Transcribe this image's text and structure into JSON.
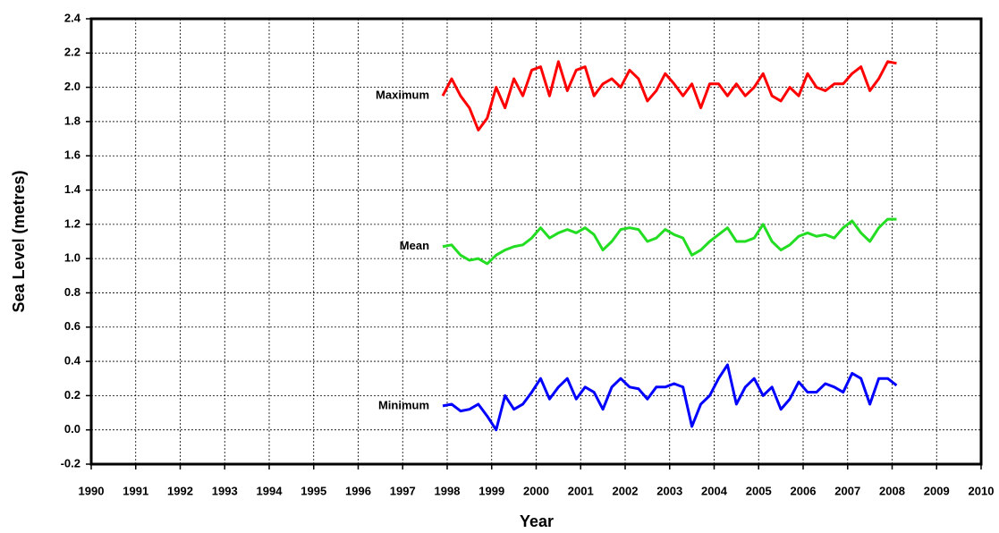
{
  "chart_data": {
    "type": "line",
    "xlabel": "Year",
    "ylabel": "Sea Level (metres)",
    "x": [
      1997.9,
      1998.1,
      1998.3,
      1998.5,
      1998.7,
      1998.9,
      1999.1,
      1999.3,
      1999.5,
      1999.7,
      1999.9,
      2000.1,
      2000.3,
      2000.5,
      2000.7,
      2000.9,
      2001.1,
      2001.3,
      2001.5,
      2001.7,
      2001.9,
      2002.1,
      2002.3,
      2002.5,
      2002.7,
      2002.9,
      2003.1,
      2003.3,
      2003.5,
      2003.7,
      2003.9,
      2004.1,
      2004.3,
      2004.5,
      2004.7,
      2004.9,
      2005.1,
      2005.3,
      2005.5,
      2005.7,
      2005.9,
      2006.1,
      2006.3,
      2006.5,
      2006.7,
      2006.9,
      2007.1,
      2007.3,
      2007.5,
      2007.7,
      2007.9,
      2008.1
    ],
    "series": [
      {
        "name": "Maximum",
        "color": "#ff0000",
        "values": [
          1.95,
          2.05,
          1.95,
          1.88,
          1.75,
          1.82,
          2.0,
          1.88,
          2.05,
          1.95,
          2.1,
          2.12,
          1.95,
          2.15,
          1.98,
          2.1,
          2.12,
          1.95,
          2.02,
          2.05,
          2.0,
          2.1,
          2.05,
          1.92,
          1.98,
          2.08,
          2.02,
          1.95,
          2.02,
          1.88,
          2.02,
          2.02,
          1.95,
          2.02,
          1.95,
          2.0,
          2.08,
          1.95,
          1.92,
          2.0,
          1.95,
          2.08,
          2.0,
          1.98,
          2.02,
          2.02,
          2.08,
          2.12,
          1.98,
          2.05,
          2.15,
          2.14
        ]
      },
      {
        "name": "Mean",
        "color": "#22dd22",
        "values": [
          1.07,
          1.08,
          1.02,
          0.99,
          1.0,
          0.97,
          1.02,
          1.05,
          1.07,
          1.08,
          1.12,
          1.18,
          1.12,
          1.15,
          1.17,
          1.15,
          1.18,
          1.14,
          1.05,
          1.1,
          1.17,
          1.18,
          1.17,
          1.1,
          1.12,
          1.17,
          1.14,
          1.12,
          1.02,
          1.05,
          1.1,
          1.14,
          1.18,
          1.1,
          1.1,
          1.12,
          1.2,
          1.1,
          1.05,
          1.08,
          1.13,
          1.15,
          1.13,
          1.14,
          1.12,
          1.18,
          1.22,
          1.15,
          1.1,
          1.18,
          1.23,
          1.23
        ]
      },
      {
        "name": "Minimum",
        "color": "#0000ff",
        "values": [
          0.14,
          0.15,
          0.11,
          0.12,
          0.15,
          0.08,
          0.0,
          0.2,
          0.12,
          0.15,
          0.22,
          0.3,
          0.18,
          0.25,
          0.3,
          0.18,
          0.25,
          0.22,
          0.12,
          0.25,
          0.3,
          0.25,
          0.24,
          0.18,
          0.25,
          0.25,
          0.27,
          0.25,
          0.02,
          0.15,
          0.2,
          0.3,
          0.38,
          0.15,
          0.25,
          0.3,
          0.2,
          0.25,
          0.12,
          0.18,
          0.28,
          0.22,
          0.22,
          0.27,
          0.25,
          0.22,
          0.33,
          0.3,
          0.15,
          0.3,
          0.3,
          0.26
        ]
      }
    ],
    "xlim": [
      1990,
      2010
    ],
    "xticks": [
      1990,
      1991,
      1992,
      1993,
      1994,
      1995,
      1996,
      1997,
      1998,
      1999,
      2000,
      2001,
      2002,
      2003,
      2004,
      2005,
      2006,
      2007,
      2008,
      2009,
      2010
    ],
    "ylim": [
      -0.2,
      2.4
    ],
    "yticks": [
      -0.2,
      {
        "value": 0,
        "label": "0.0"
      },
      0.2,
      0.4,
      0.6,
      0.8,
      {
        "value": 1,
        "label": "1.0"
      },
      1.2,
      1.4,
      1.6,
      1.8,
      {
        "value": 2,
        "label": "2.0"
      },
      2.2,
      2.4
    ],
    "grid": true
  }
}
